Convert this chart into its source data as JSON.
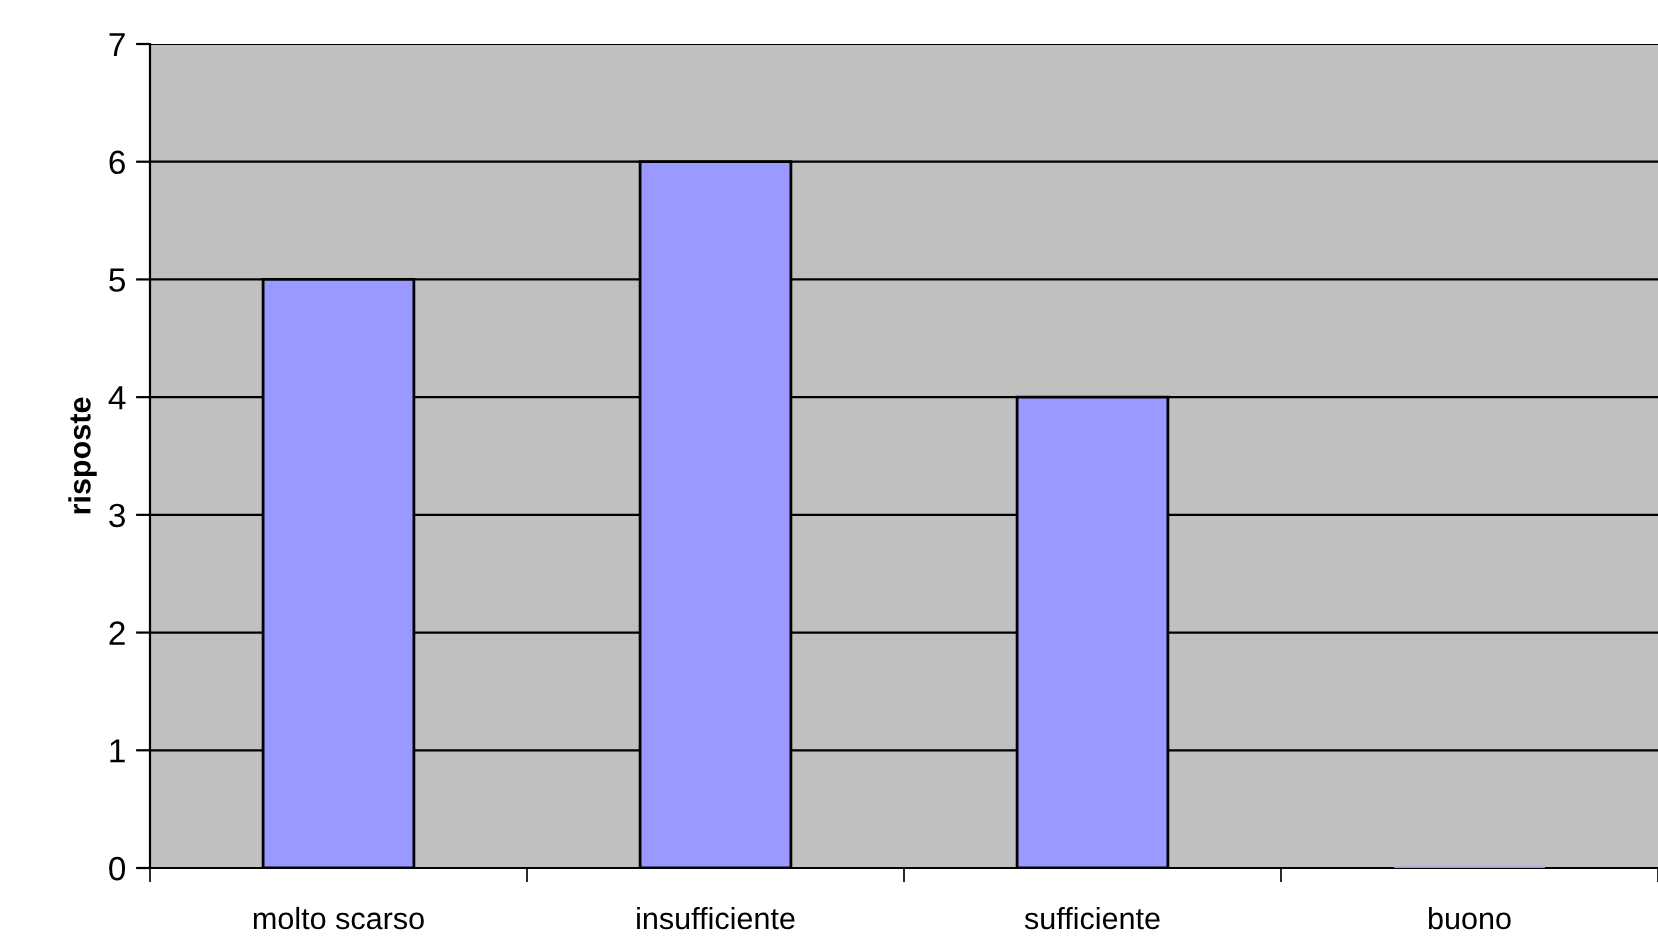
{
  "chart_data": {
    "type": "bar",
    "ylabel": "risposte",
    "categories": [
      "molto scarso",
      "insufficiente",
      "sufficiente",
      "buono"
    ],
    "values": [
      5,
      6,
      4,
      0
    ],
    "color": "#9999ff",
    "ylim": [
      0,
      7
    ],
    "yticks": [
      0,
      1,
      2,
      3,
      4,
      5,
      6,
      7
    ],
    "grid": "y"
  }
}
